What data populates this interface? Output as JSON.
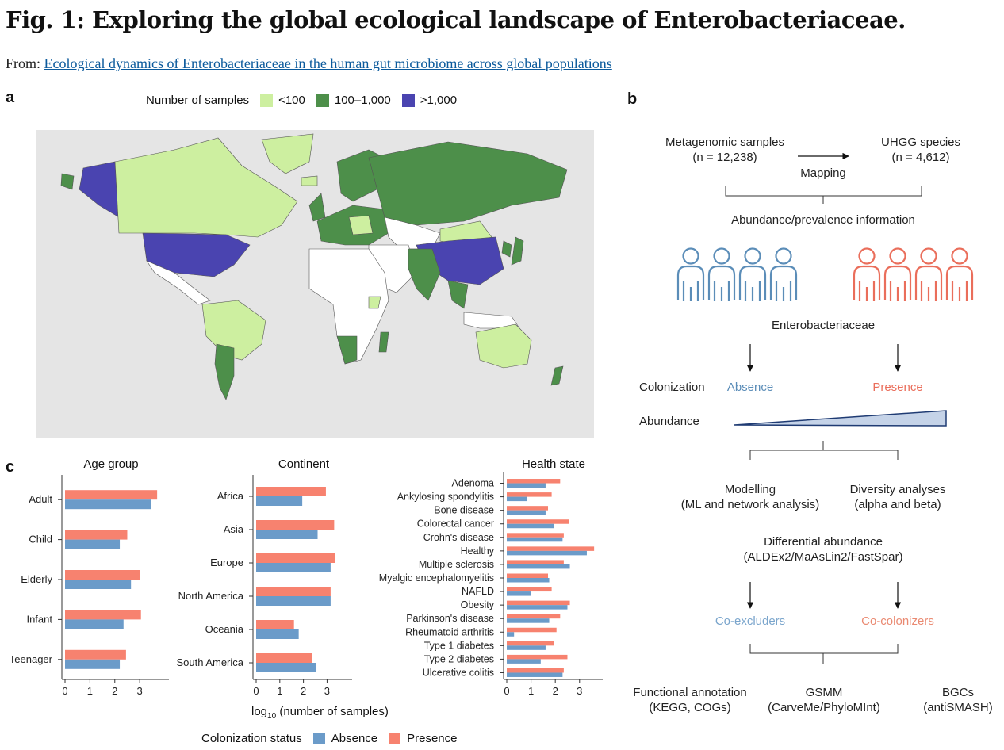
{
  "figure": {
    "title": "Fig. 1: Exploring the global ecological landscape of Enterobacteriaceae.",
    "from_label": "From:",
    "source_link": "Ecological dynamics of Enterobacteriaceae in the human gut microbiome across global populations"
  },
  "panel_a": {
    "letter": "a",
    "legend_title": "Number of samples",
    "legend": [
      {
        "label": "<100",
        "color": "#cdefa0"
      },
      {
        "label": "100–1,000",
        "color": "#4d8f4a"
      },
      {
        "label": ">1,000",
        "color": "#4a44b0"
      }
    ]
  },
  "panel_b": {
    "letter": "b",
    "samples": "Metagenomic samples",
    "samples_n": "(n = 12,238)",
    "species": "UHGG species",
    "species_n": "(n = 4,612)",
    "mapping": "Mapping",
    "abundance_info": "Abundance/prevalence information",
    "family": "Enterobacteriaceae",
    "colonization": "Colonization",
    "absence": "Absence",
    "presence": "Presence",
    "abundance": "Abundance",
    "modelling": "Modelling",
    "modelling_sub": "(ML and network analysis)",
    "diversity": "Diversity analyses",
    "diversity_sub": "(alpha and beta)",
    "diff_abund": "Differential abundance",
    "diff_abund_sub": "(ALDEx2/MaAsLin2/FastSpar)",
    "co_excluders": "Co-excluders",
    "co_colonizers": "Co-colonizers",
    "functional": "Functional annotation",
    "functional_sub": "(KEGG, COGs)",
    "gsmm": "GSMM",
    "gsmm_sub": "(CarveMe/PhyloMInt)",
    "bgcs": "BGCs",
    "bgcs_sub": "(antiSMASH)",
    "absence_color": "#5b8db8",
    "presence_color": "#ea6e5b"
  },
  "panel_c": {
    "letter": "c",
    "xlabel_prefix": "log",
    "xlabel_sub": "10",
    "xlabel_suffix": " (number of samples)",
    "legend_title": "Colonization status",
    "absence_label": "Absence",
    "presence_label": "Presence",
    "absence_color": "#6b9bc9",
    "presence_color": "#f7826f"
  },
  "chart_data": [
    {
      "type": "bar",
      "title": "Age group",
      "orientation": "horizontal",
      "categories": [
        "Adult",
        "Child",
        "Elderly",
        "Infant",
        "Teenager"
      ],
      "series": [
        {
          "name": "Presence",
          "values": [
            3.7,
            2.5,
            3.0,
            3.05,
            2.45
          ]
        },
        {
          "name": "Absence",
          "values": [
            3.45,
            2.2,
            2.65,
            2.35,
            2.2
          ]
        }
      ],
      "xticks": [
        0,
        1,
        2,
        3
      ],
      "xlim": [
        0,
        4
      ]
    },
    {
      "type": "bar",
      "title": "Continent",
      "orientation": "horizontal",
      "categories": [
        "Africa",
        "Asia",
        "Europe",
        "North America",
        "Oceania",
        "South America"
      ],
      "series": [
        {
          "name": "Presence",
          "values": [
            2.95,
            3.3,
            3.35,
            3.15,
            1.6,
            2.35
          ]
        },
        {
          "name": "Absence",
          "values": [
            1.95,
            2.6,
            3.15,
            3.15,
            1.8,
            2.55
          ]
        }
      ],
      "xticks": [
        0,
        1,
        2,
        3
      ],
      "xlim": [
        0,
        3.9
      ]
    },
    {
      "type": "bar",
      "title": "Health state",
      "orientation": "horizontal",
      "categories": [
        "Adenoma",
        "Ankylosing spondylitis",
        "Bone disease",
        "Colorectal cancer",
        "Crohn's disease",
        "Healthy",
        "Multiple sclerosis",
        "Myalgic encephalomyelitis",
        "NAFLD",
        "Obesity",
        "Parkinson's disease",
        "Rheumatoid arthritis",
        "Type 1 diabetes",
        "Type 2 diabetes",
        "Ulcerative colitis"
      ],
      "series": [
        {
          "name": "Presence",
          "values": [
            2.2,
            1.85,
            1.7,
            2.55,
            2.35,
            3.6,
            2.35,
            1.7,
            1.85,
            2.6,
            2.2,
            2.05,
            1.95,
            2.5,
            2.35
          ]
        },
        {
          "name": "Absence",
          "values": [
            1.6,
            0.85,
            1.6,
            1.95,
            2.3,
            3.3,
            2.6,
            1.75,
            1.0,
            2.5,
            1.75,
            0.3,
            1.6,
            1.4,
            2.3
          ]
        }
      ],
      "xticks": [
        0,
        1,
        2,
        3
      ],
      "xlim": [
        0,
        3.8
      ]
    }
  ]
}
